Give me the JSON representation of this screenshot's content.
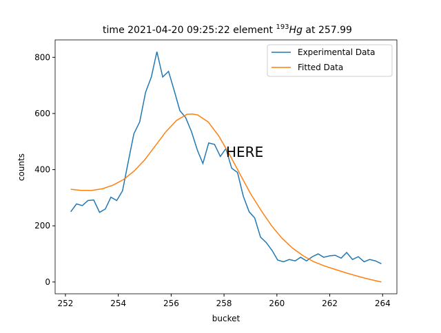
{
  "chart_data": {
    "type": "line",
    "title": [
      "time 2021-04-20 09:25:22 element ",
      "193",
      "Hg",
      " at 257.99"
    ],
    "x_label": "bucket",
    "y_label": "counts",
    "annotation": "HERE",
    "annotation_color": "#ff0000",
    "xlim": [
      251.61,
      264.54
    ],
    "xticks": [
      252,
      254,
      256,
      258,
      260,
      262,
      264
    ],
    "ylim": [
      -42,
      862
    ],
    "yticks": [
      0,
      200,
      400,
      600,
      800
    ],
    "legend": "upper right",
    "grid": false,
    "series": [
      {
        "name": "Experimental Data",
        "color": "#1f77b4",
        "x": [
          252.2,
          252.42,
          252.64,
          252.85,
          253.07,
          253.29,
          253.51,
          253.72,
          253.94,
          254.16,
          254.38,
          254.59,
          254.81,
          255.03,
          255.25,
          255.46,
          255.68,
          255.9,
          256.12,
          256.33,
          256.55,
          256.77,
          256.99,
          257.2,
          257.42,
          257.64,
          257.86,
          258.07,
          258.29,
          258.51,
          258.73,
          258.95,
          259.16,
          259.38,
          259.6,
          259.82,
          260.03,
          260.25,
          260.47,
          260.69,
          260.9,
          261.12,
          261.34,
          261.56,
          261.77,
          261.99,
          262.21,
          262.43,
          262.64,
          262.86,
          263.08,
          263.3,
          263.51,
          263.73,
          263.95
        ],
        "values": [
          250,
          278,
          272,
          290,
          292,
          248,
          260,
          302,
          290,
          325,
          430,
          528,
          570,
          675,
          730,
          820,
          730,
          750,
          680,
          610,
          585,
          535,
          470,
          422,
          495,
          490,
          447,
          475,
          405,
          390,
          305,
          250,
          228,
          160,
          140,
          112,
          78,
          72,
          80,
          75,
          88,
          75,
          90,
          100,
          88,
          93,
          95,
          85,
          105,
          80,
          90,
          72,
          80,
          75,
          65
        ]
      },
      {
        "name": "Fitted Data",
        "color": "#ff7f0e",
        "x": [
          252.2,
          252.6,
          253.0,
          253.4,
          253.8,
          254.2,
          254.6,
          255.0,
          255.4,
          255.8,
          256.2,
          256.6,
          256.8,
          257.0,
          257.4,
          257.8,
          258.2,
          258.6,
          259.0,
          259.4,
          259.8,
          260.2,
          260.6,
          261.0,
          261.4,
          261.8,
          262.2,
          262.6,
          263.0,
          263.4,
          263.95
        ],
        "values": [
          330,
          326,
          326,
          332,
          345,
          365,
          395,
          435,
          485,
          535,
          575,
          597,
          598,
          595,
          570,
          520,
          455,
          385,
          315,
          255,
          200,
          155,
          120,
          93,
          72,
          57,
          45,
          33,
          22,
          12,
          0
        ]
      }
    ]
  }
}
